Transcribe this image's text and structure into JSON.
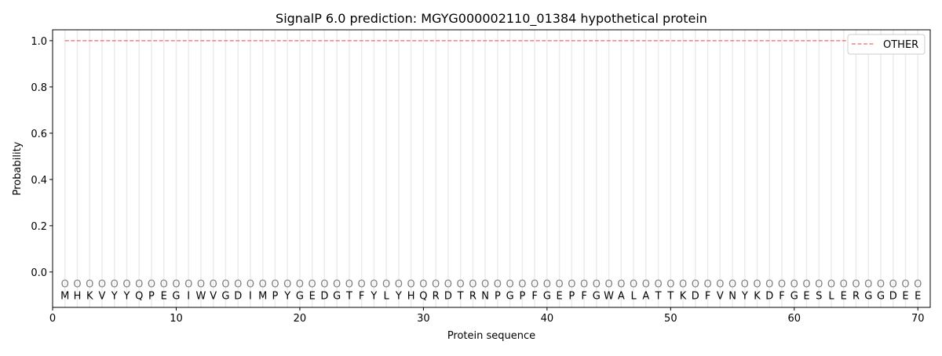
{
  "chart_data": {
    "type": "line",
    "title": "SignalP 6.0 prediction: MGYG000002110_01384 hypothetical protein",
    "xlabel": "Protein sequence",
    "ylabel": "Probability",
    "xlim": [
      0,
      71
    ],
    "ylim": [
      -0.153,
      1.047
    ],
    "xticks": [
      0,
      10,
      20,
      30,
      40,
      50,
      60,
      70
    ],
    "yticks": [
      0.0,
      0.2,
      0.4,
      0.6,
      0.8,
      1.0
    ],
    "ytick_labels": [
      "0.0",
      "0.2",
      "0.4",
      "0.6",
      "0.8",
      "1.0"
    ],
    "grid": "vertical lines at each residue",
    "legend_position": "top-right",
    "sequence": [
      "M",
      "H",
      "K",
      "V",
      "Y",
      "Y",
      "Q",
      "P",
      "E",
      "G",
      "I",
      "W",
      "V",
      "G",
      "D",
      "I",
      "M",
      "P",
      "Y",
      "G",
      "E",
      "D",
      "G",
      "T",
      "F",
      "Y",
      "L",
      "Y",
      "H",
      "Q",
      "R",
      "D",
      "T",
      "R",
      "N",
      "P",
      "G",
      "P",
      "F",
      "G",
      "E",
      "P",
      "F",
      "G",
      "W",
      "A",
      "L",
      "A",
      "T",
      "T",
      "K",
      "D",
      "F",
      "V",
      "N",
      "Y",
      "K",
      "D",
      "F",
      "G",
      "E",
      "S",
      "L",
      "E",
      "R",
      "G",
      "G",
      "D",
      "E",
      "E"
    ],
    "predicted_labels_char": "O",
    "series": [
      {
        "name": "OTHER",
        "style": "dashed",
        "color": "#f08080",
        "x_range": [
          1,
          70
        ],
        "value": 1.0
      }
    ]
  }
}
